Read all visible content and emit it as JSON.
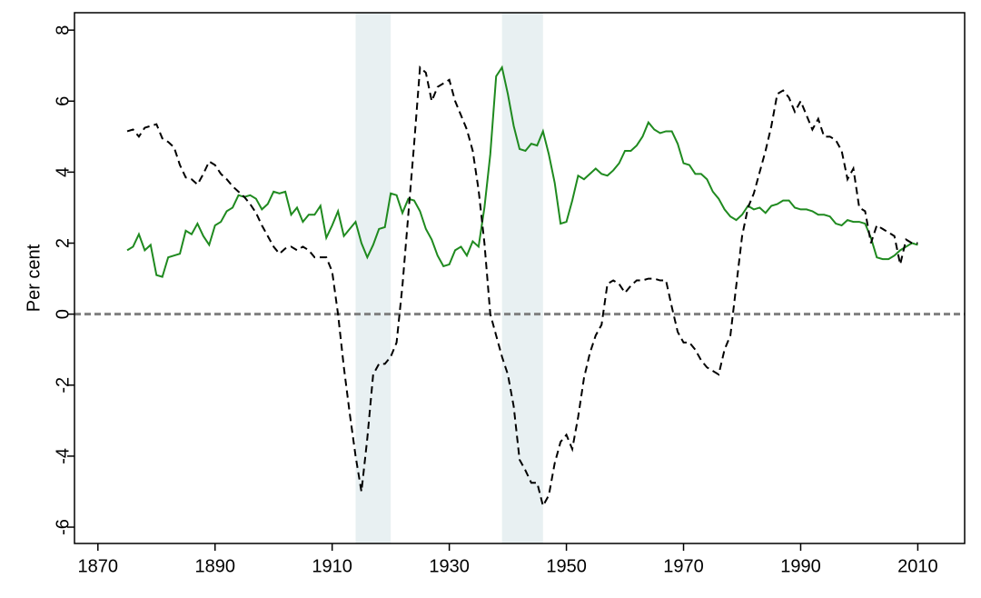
{
  "chart_data": {
    "type": "line",
    "ylabel": "Per cent",
    "x": [
      1875,
      1876,
      1877,
      1878,
      1879,
      1880,
      1881,
      1882,
      1883,
      1884,
      1885,
      1886,
      1887,
      1888,
      1889,
      1890,
      1891,
      1892,
      1893,
      1894,
      1895,
      1896,
      1897,
      1898,
      1899,
      1900,
      1901,
      1902,
      1903,
      1904,
      1905,
      1906,
      1907,
      1908,
      1909,
      1910,
      1911,
      1912,
      1913,
      1914,
      1915,
      1916,
      1917,
      1918,
      1919,
      1920,
      1921,
      1922,
      1923,
      1924,
      1925,
      1926,
      1927,
      1928,
      1929,
      1930,
      1931,
      1932,
      1933,
      1934,
      1935,
      1936,
      1937,
      1938,
      1939,
      1940,
      1941,
      1942,
      1943,
      1944,
      1945,
      1946,
      1947,
      1948,
      1949,
      1950,
      1951,
      1952,
      1953,
      1954,
      1955,
      1956,
      1957,
      1958,
      1959,
      1960,
      1961,
      1962,
      1963,
      1964,
      1965,
      1966,
      1967,
      1968,
      1969,
      1970,
      1971,
      1972,
      1973,
      1974,
      1975,
      1976,
      1977,
      1978,
      1979,
      1980,
      1981,
      1982,
      1983,
      1984,
      1985,
      1986,
      1987,
      1988,
      1989,
      1990,
      1991,
      1992,
      1993,
      1994,
      1995,
      1996,
      1997,
      1998,
      1999,
      2000,
      2001,
      2002,
      2003,
      2004,
      2005,
      2006,
      2007,
      2008,
      2009,
      2010
    ],
    "series": [
      {
        "color": "#1f8a1f",
        "style": "solid",
        "values": [
          1.8,
          1.9,
          2.25,
          1.8,
          1.95,
          1.1,
          1.05,
          1.6,
          1.65,
          1.7,
          2.35,
          2.25,
          2.55,
          2.2,
          1.95,
          2.5,
          2.6,
          2.9,
          3.0,
          3.35,
          3.3,
          3.35,
          3.25,
          2.95,
          3.1,
          3.45,
          3.4,
          3.45,
          2.8,
          3.0,
          2.6,
          2.8,
          2.8,
          3.05,
          2.15,
          2.5,
          2.9,
          2.2,
          2.4,
          2.6,
          2.0,
          1.6,
          1.95,
          2.4,
          2.45,
          3.4,
          3.35,
          2.85,
          3.25,
          3.2,
          2.9,
          2.4,
          2.1,
          1.65,
          1.35,
          1.4,
          1.8,
          1.9,
          1.65,
          2.05,
          1.9,
          3.0,
          4.5,
          6.7,
          6.95,
          6.2,
          5.3,
          4.65,
          4.6,
          4.8,
          4.75,
          5.15,
          4.5,
          3.7,
          2.55,
          2.6,
          3.2,
          3.9,
          3.8,
          3.95,
          4.1,
          3.95,
          3.9,
          4.05,
          4.25,
          4.6,
          4.6,
          4.75,
          5.0,
          5.4,
          5.2,
          5.1,
          5.15,
          5.15,
          4.8,
          4.25,
          4.2,
          3.95,
          3.95,
          3.8,
          3.45,
          3.25,
          2.95,
          2.75,
          2.65,
          2.8,
          3.05,
          2.95,
          3.0,
          2.85,
          3.05,
          3.1,
          3.2,
          3.2,
          3.0,
          2.95,
          2.95,
          2.9,
          2.8,
          2.8,
          2.75,
          2.55,
          2.5,
          2.65,
          2.6,
          2.6,
          2.55,
          2.15,
          1.6,
          1.55,
          1.55,
          1.65,
          1.8,
          1.9,
          2.0,
          1.95
        ]
      },
      {
        "color": "#000000",
        "style": "dashed",
        "values": [
          5.15,
          5.2,
          5.0,
          5.25,
          5.3,
          5.35,
          4.95,
          4.85,
          4.7,
          4.2,
          3.85,
          3.8,
          3.65,
          3.95,
          4.3,
          4.2,
          3.95,
          3.8,
          3.6,
          3.45,
          3.3,
          3.1,
          2.85,
          2.5,
          2.2,
          1.9,
          1.7,
          1.85,
          1.9,
          1.8,
          1.9,
          1.8,
          1.6,
          1.6,
          1.6,
          1.2,
          0.0,
          -1.5,
          -2.8,
          -4.0,
          -5.0,
          -3.5,
          -1.7,
          -1.4,
          -1.4,
          -1.2,
          -0.8,
          0.8,
          2.8,
          4.8,
          6.95,
          6.8,
          6.0,
          6.4,
          6.5,
          6.6,
          6.0,
          5.6,
          5.2,
          4.6,
          3.5,
          2.0,
          0.0,
          -0.6,
          -1.2,
          -1.7,
          -2.6,
          -4.1,
          -4.4,
          -4.75,
          -4.75,
          -5.4,
          -5.1,
          -4.2,
          -3.6,
          -3.4,
          -3.8,
          -2.9,
          -1.8,
          -1.1,
          -0.6,
          -0.3,
          0.85,
          0.95,
          0.85,
          0.6,
          0.8,
          0.95,
          0.95,
          1.0,
          1.0,
          0.95,
          0.95,
          0.2,
          -0.5,
          -0.8,
          -0.8,
          -1.0,
          -1.3,
          -1.5,
          -1.6,
          -1.7,
          -1.0,
          -0.6,
          0.8,
          2.2,
          3.0,
          3.4,
          4.0,
          4.6,
          5.3,
          6.2,
          6.3,
          6.1,
          5.7,
          6.0,
          5.6,
          5.2,
          5.5,
          5.0,
          5.0,
          4.9,
          4.6,
          3.8,
          4.1,
          3.0,
          2.9,
          2.0,
          2.5,
          2.4,
          2.3,
          2.2,
          1.4,
          2.1,
          2.0,
          2.0
        ]
      }
    ],
    "shaded_regions": [
      [
        1914,
        1920
      ],
      [
        1939,
        1946
      ]
    ],
    "shade_color": "#e8f0f2",
    "reference_line": {
      "value": 0,
      "color": "#7f7f7f"
    },
    "xlim": [
      1866,
      2018
    ],
    "xticks": [
      1870,
      1890,
      1910,
      1930,
      1950,
      1970,
      1990,
      2010
    ],
    "ylim": [
      -6.46,
      8.49
    ],
    "yticks": [
      -6,
      -4,
      -2,
      0,
      2,
      4,
      6,
      8
    ],
    "grid": false
  }
}
